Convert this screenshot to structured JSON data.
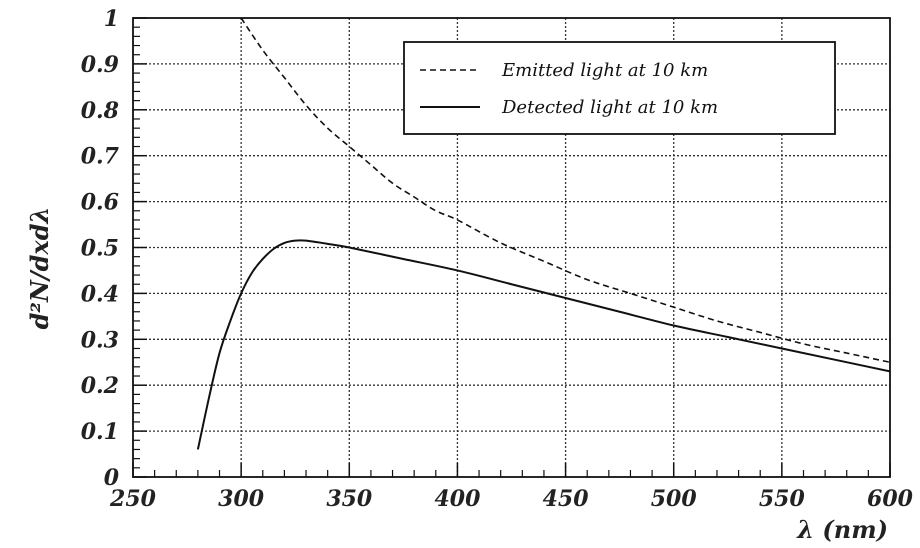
{
  "chart_data": {
    "type": "line",
    "xlabel": "λ (nm)",
    "ylabel": "d²N/dxdλ",
    "xlim": [
      250,
      600
    ],
    "ylim": [
      0,
      1
    ],
    "x_ticks": [
      "250",
      "300",
      "350",
      "400",
      "450",
      "500",
      "550",
      "600"
    ],
    "y_ticks": [
      "0",
      "0.1",
      "0.2",
      "0.3",
      "0.4",
      "0.5",
      "0.6",
      "0.7",
      "0.8",
      "0.9",
      "1"
    ],
    "grid": true,
    "legend_position": "top-right",
    "series": [
      {
        "name": "Emitted light at 10 km",
        "style": "dashed",
        "x": [
          300,
          310,
          320,
          330,
          340,
          350,
          360,
          370,
          380,
          390,
          400,
          420,
          440,
          460,
          480,
          500,
          520,
          540,
          560,
          580,
          600
        ],
        "y": [
          1.0,
          0.93,
          0.87,
          0.81,
          0.76,
          0.72,
          0.68,
          0.64,
          0.61,
          0.58,
          0.56,
          0.51,
          0.47,
          0.43,
          0.4,
          0.37,
          0.34,
          0.315,
          0.29,
          0.27,
          0.25
        ]
      },
      {
        "name": "Detected light at 10 km",
        "style": "solid",
        "x": [
          280,
          285,
          290,
          295,
          300,
          305,
          310,
          315,
          320,
          325,
          330,
          340,
          350,
          375,
          400,
          425,
          450,
          475,
          500,
          525,
          550,
          575,
          600
        ],
        "y": [
          0.06,
          0.17,
          0.27,
          0.34,
          0.4,
          0.445,
          0.475,
          0.497,
          0.51,
          0.515,
          0.515,
          0.508,
          0.5,
          0.475,
          0.45,
          0.42,
          0.39,
          0.36,
          0.33,
          0.305,
          0.28,
          0.255,
          0.23
        ]
      }
    ]
  }
}
